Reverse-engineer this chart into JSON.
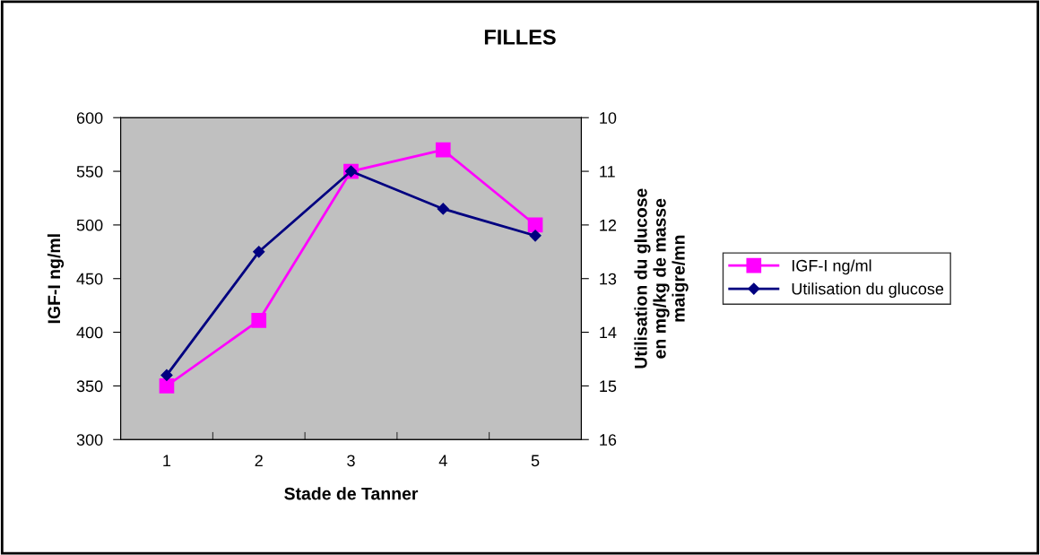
{
  "chart_data": {
    "type": "line",
    "title": "FILLES",
    "xlabel": "Stade de Tanner",
    "ylabel": "IGF-I ng/ml",
    "y2label": "Utilisation du glucose\nen mg/kg de masse\nmaigre/mn",
    "categories": [
      "1",
      "2",
      "3",
      "4",
      "5"
    ],
    "series": [
      {
        "name": "IGF-I ng/ml",
        "color": "#ff00ff",
        "marker": "square",
        "values": [
          350,
          411,
          550,
          570,
          500
        ]
      },
      {
        "name": "Utilisation du glucose",
        "color": "#000080",
        "marker": "diamond",
        "axis": "y2",
        "values": [
          14.8,
          12.5,
          11.0,
          11.7,
          12.2
        ]
      }
    ],
    "ylim": [
      300,
      600
    ],
    "yticks": [
      300,
      350,
      400,
      450,
      500,
      550,
      600
    ],
    "y2lim": [
      16,
      10
    ],
    "y2ticks": [
      10,
      11,
      12,
      13,
      14,
      15,
      16
    ],
    "grid": false,
    "legend": "right"
  }
}
